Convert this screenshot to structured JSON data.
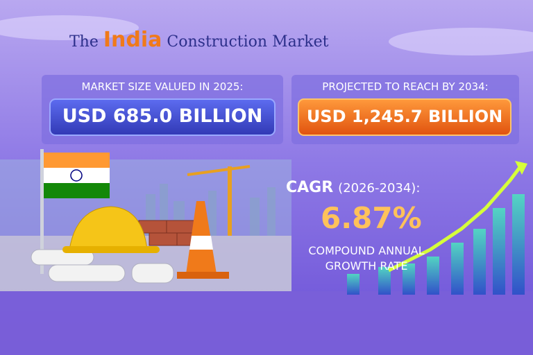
{
  "header": {
    "title_prefix": "The",
    "title_highlight": "India",
    "title_suffix": "Construction Market"
  },
  "stats": [
    {
      "label": "MARKET SIZE VALUED IN 2025:",
      "value": "USD 685.0 BILLION"
    },
    {
      "label": "PROJECTED TO REACH BY 2034:",
      "value": "USD 1,245.7 BILLION"
    }
  ],
  "cagr": {
    "label": "CAGR",
    "period": "(2026-2034):",
    "value": "6.87%",
    "caption_line1": "COMPOUND ANNUAL",
    "caption_line2": "GROWTH RATE"
  }
}
